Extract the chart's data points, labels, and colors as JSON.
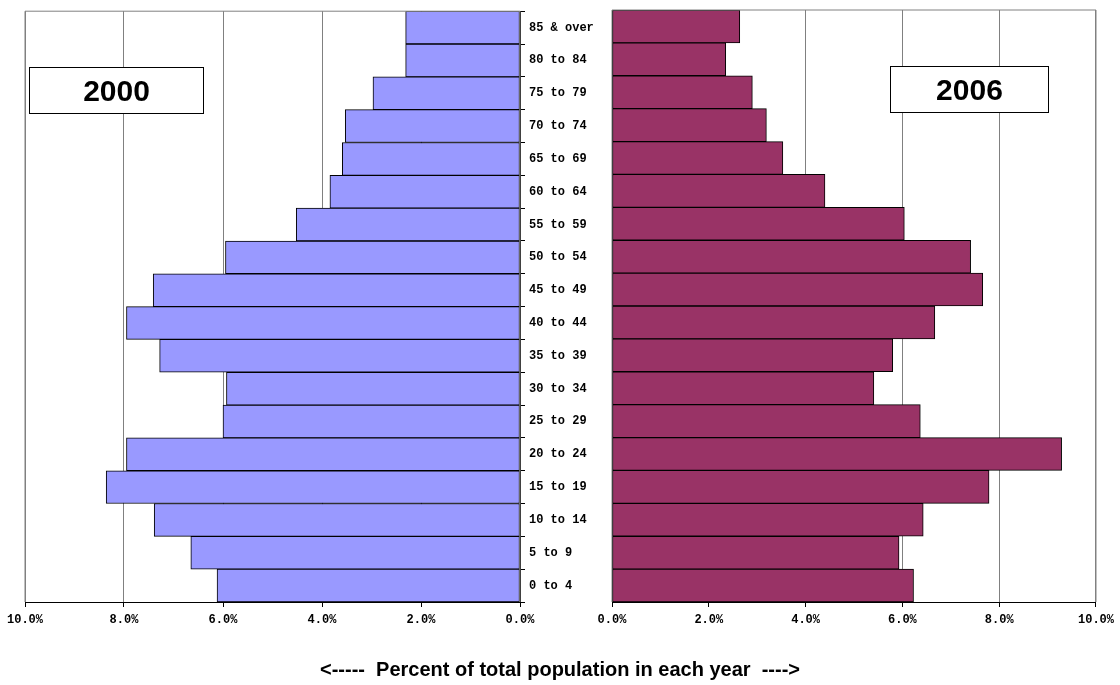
{
  "chart_data": [
    {
      "type": "bar",
      "orientation": "horizontal",
      "categories": [
        "85 & over",
        "80 to 84",
        "75 to 79",
        "70 to 74",
        "65 to 69",
        "60 to 64",
        "55 to 59",
        "50 to 54",
        "45 to 49",
        "40 to 44",
        "35 to 39",
        "30 to 34",
        "25 to 29",
        "20 to 24",
        "15 to 19",
        "10 to 14",
        "5 to 9",
        "0 to 4"
      ],
      "values": [
        2.31,
        2.31,
        2.97,
        3.53,
        3.59,
        3.84,
        4.52,
        5.95,
        7.41,
        7.95,
        7.28,
        5.93,
        6.0,
        7.95,
        8.36,
        7.39,
        6.65,
        6.12
      ],
      "color": "#9999ff",
      "xlim": [
        10,
        0
      ],
      "xticks": [
        {
          "value": 10,
          "label": "10.0%"
        },
        {
          "value": 8,
          "label": "8.0%"
        },
        {
          "value": 6,
          "label": "6.0%"
        },
        {
          "value": 4,
          "label": "4.0%"
        },
        {
          "value": 2,
          "label": "2.0%"
        },
        {
          "value": 0,
          "label": "0.0%"
        }
      ],
      "grid": "x",
      "annotations": [
        "2000"
      ],
      "xlabel": "<-----  Percent of total population in each year  ---->"
    },
    {
      "type": "bar",
      "orientation": "horizontal",
      "categories": [
        null,
        null,
        null,
        null,
        null,
        null,
        null,
        null,
        null,
        null,
        null,
        null,
        null,
        null,
        null,
        null,
        null,
        null
      ],
      "values": [
        2.64,
        2.35,
        2.9,
        3.19,
        3.53,
        4.4,
        6.04,
        7.41,
        7.66,
        6.67,
        5.8,
        5.41,
        6.37,
        9.29,
        7.79,
        6.43,
        5.93,
        6.23
      ],
      "color": "#993366",
      "xlim": [
        0,
        10
      ],
      "xticks": [
        {
          "value": 0,
          "label": "0.0%"
        },
        {
          "value": 2,
          "label": "2.0%"
        },
        {
          "value": 4,
          "label": "4.0%"
        },
        {
          "value": 6,
          "label": "6.0%"
        },
        {
          "value": 8,
          "label": "8.0%"
        },
        {
          "value": 10,
          "label": "10.0%"
        }
      ],
      "grid": "x",
      "tick_labels": "x",
      "annotations": [
        "2006"
      ]
    }
  ]
}
